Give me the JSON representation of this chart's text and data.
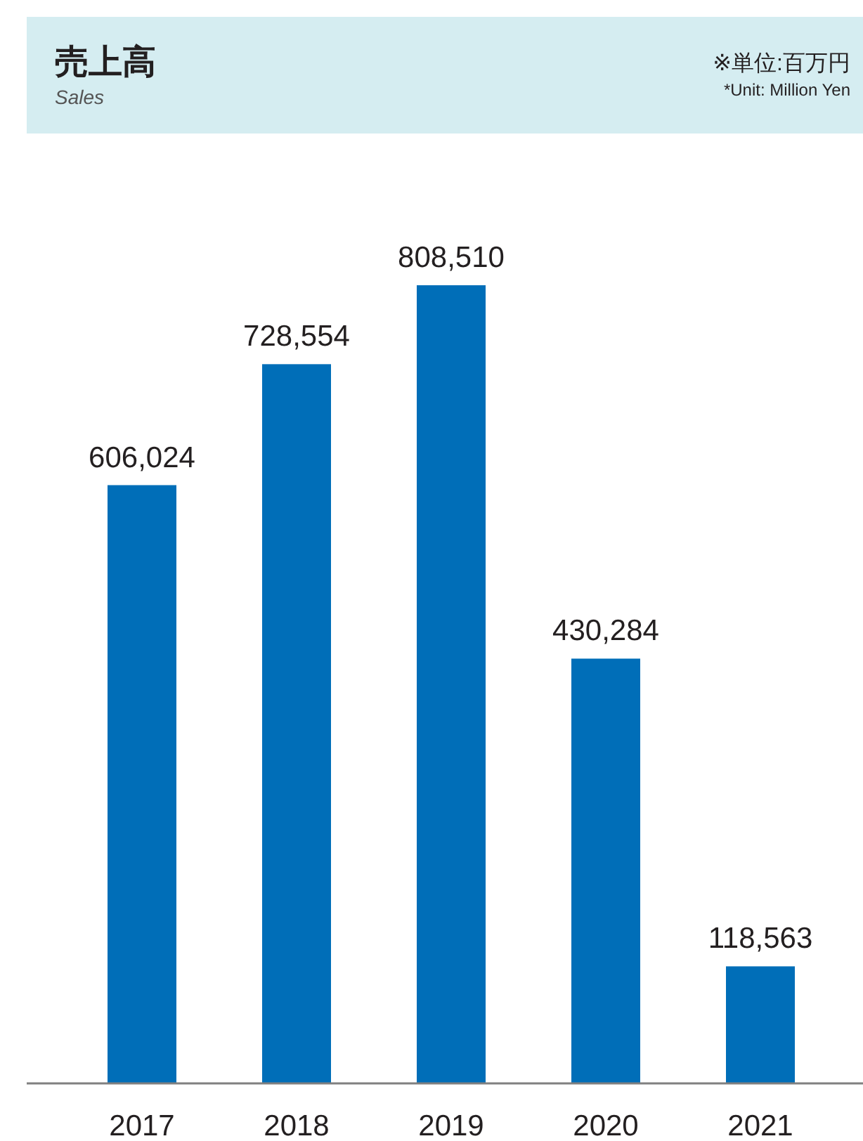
{
  "chart_data": {
    "type": "bar",
    "title": "売上高",
    "subtitle": "Sales",
    "annotations": [
      "※単位:百万円",
      "*Unit: Million Yen"
    ],
    "categories": [
      "2017",
      "2018",
      "2019",
      "2020",
      "2021"
    ],
    "values": [
      606024,
      728554,
      808510,
      430284,
      118563
    ],
    "value_labels": [
      "606,024",
      "728,554",
      "808,510",
      "430,284",
      "118,563"
    ],
    "color": "#006eb8"
  }
}
